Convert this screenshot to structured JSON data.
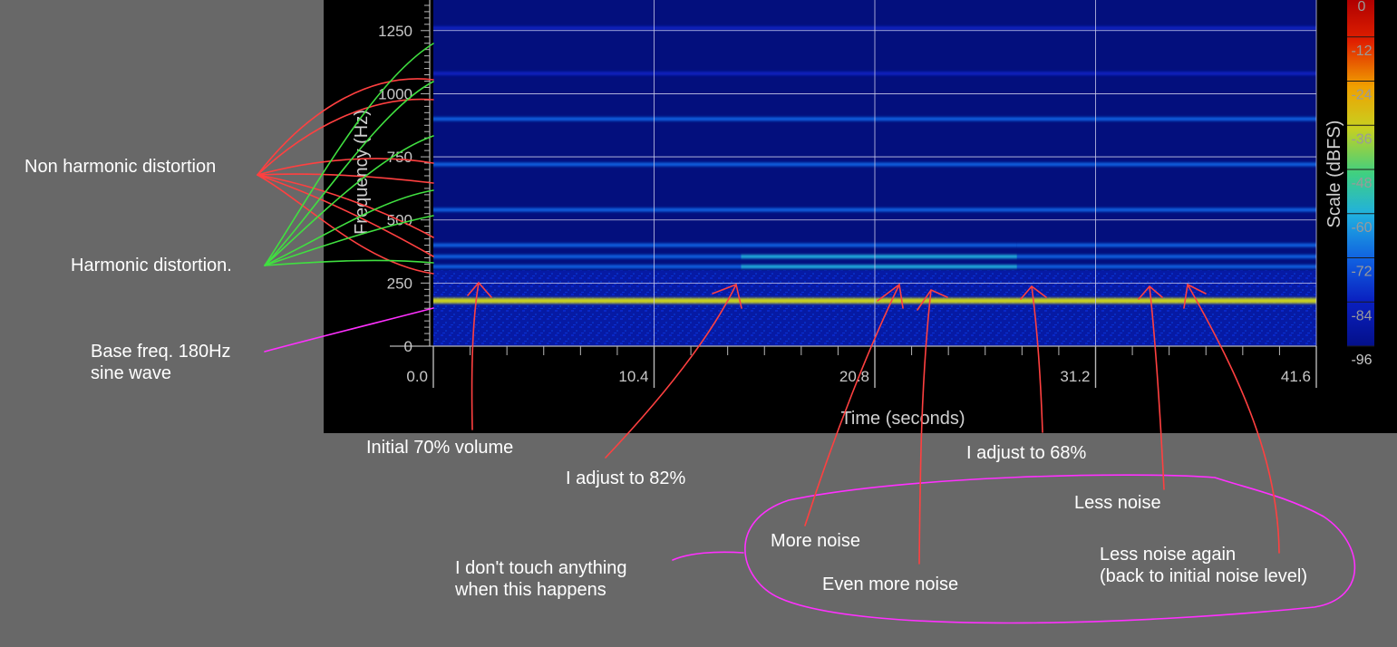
{
  "chart_data": {
    "type": "heatmap",
    "title": "",
    "xlabel": "Time (seconds)",
    "ylabel": "Frequency (Hz)",
    "xlim": [
      0,
      41.6
    ],
    "ylim": [
      0,
      1400
    ],
    "x_ticks": [
      "0.0",
      "10.4",
      "20.8",
      "31.2",
      "41.6"
    ],
    "x_tick_values": [
      0,
      10.4,
      20.8,
      31.2,
      41.6
    ],
    "y_ticks": [
      "0",
      "250",
      "500",
      "750",
      "1000",
      "1250"
    ],
    "y_tick_values": [
      0,
      250,
      500,
      750,
      1000,
      1250
    ],
    "grid": true,
    "colorbar": {
      "label": "Scale (dBFS)",
      "ticks": [
        "0",
        "-12",
        "-24",
        "-36",
        "-48",
        "-60",
        "-72",
        "-84",
        "-96"
      ],
      "tick_values": [
        0,
        -12,
        -24,
        -36,
        -48,
        -60,
        -72,
        -84,
        -96
      ],
      "range": [
        -96,
        0
      ],
      "colors": [
        "#b00000",
        "#e03000",
        "#f0a000",
        "#c8d020",
        "#40d080",
        "#20b0e0",
        "#1060e0",
        "#0a20c0",
        "#04108a"
      ]
    },
    "bands": [
      {
        "freq": 180,
        "level": -32,
        "segments": [
          [
            0,
            41.6
          ]
        ]
      },
      {
        "freq": 315,
        "level": -68,
        "segments": [
          [
            0,
            14.5,
            -72
          ],
          [
            14.5,
            27.5,
            -64
          ],
          [
            27.5,
            41.6,
            -70
          ]
        ]
      },
      {
        "freq": 355,
        "level": -68,
        "segments": [
          [
            0,
            14.5,
            -72
          ],
          [
            14.5,
            27.5,
            -63
          ],
          [
            27.5,
            41.6,
            -70
          ]
        ]
      },
      {
        "freq": 400,
        "level": -72,
        "segments": [
          [
            0,
            14.5,
            -76
          ],
          [
            14.5,
            27.5,
            -66
          ],
          [
            27.5,
            41.6,
            -74
          ]
        ]
      },
      {
        "freq": 540,
        "level": -66,
        "segments": [
          [
            0,
            41.6,
            -66
          ]
        ]
      },
      {
        "freq": 720,
        "level": -72,
        "segments": [
          [
            0,
            41.6,
            -72
          ]
        ]
      },
      {
        "freq": 900,
        "level": -68,
        "segments": [
          [
            0,
            41.6,
            -68
          ]
        ]
      },
      {
        "freq": 1080,
        "level": -80,
        "segments": [
          [
            0,
            41.6,
            -80
          ]
        ]
      },
      {
        "freq": 1260,
        "level": -80,
        "segments": [
          [
            0,
            41.6,
            -80
          ]
        ]
      }
    ],
    "annotations": [
      {
        "id": "non-harmonic",
        "text": [
          "Non harmonic distortion"
        ],
        "color": "#ff4040"
      },
      {
        "id": "harmonic",
        "text": [
          "Harmonic distortion."
        ],
        "color": "#40ff40"
      },
      {
        "id": "base-freq",
        "text": [
          "Base freq. 180Hz",
          "sine wave"
        ],
        "color": "#ff30ff"
      },
      {
        "id": "initial-70",
        "text": [
          "Initial 70% volume"
        ],
        "time": 2.0,
        "color": "#ff4040"
      },
      {
        "id": "adjust-82",
        "text": [
          "I adjust to 82%"
        ],
        "time": 14.5,
        "color": "#ff4040"
      },
      {
        "id": "more-noise",
        "text": [
          "More noise"
        ],
        "time": 22.0,
        "color": "#ff4040"
      },
      {
        "id": "even-more-noise",
        "text": [
          "Even more noise"
        ],
        "time": 23.5,
        "color": "#ff4040"
      },
      {
        "id": "adjust-68",
        "text": [
          "I adjust to 68%"
        ],
        "time": 28.0,
        "color": "#ff4040"
      },
      {
        "id": "less-noise",
        "text": [
          "Less noise"
        ],
        "time": 33.8,
        "color": "#ff4040"
      },
      {
        "id": "less-noise-again",
        "text": [
          "Less noise again",
          "(back to initial noise level)"
        ],
        "time": 35.5,
        "color": "#ff4040"
      },
      {
        "id": "dont-touch",
        "text": [
          "I don't touch anything",
          "when this happens"
        ],
        "color": "#ff30ff"
      }
    ]
  }
}
